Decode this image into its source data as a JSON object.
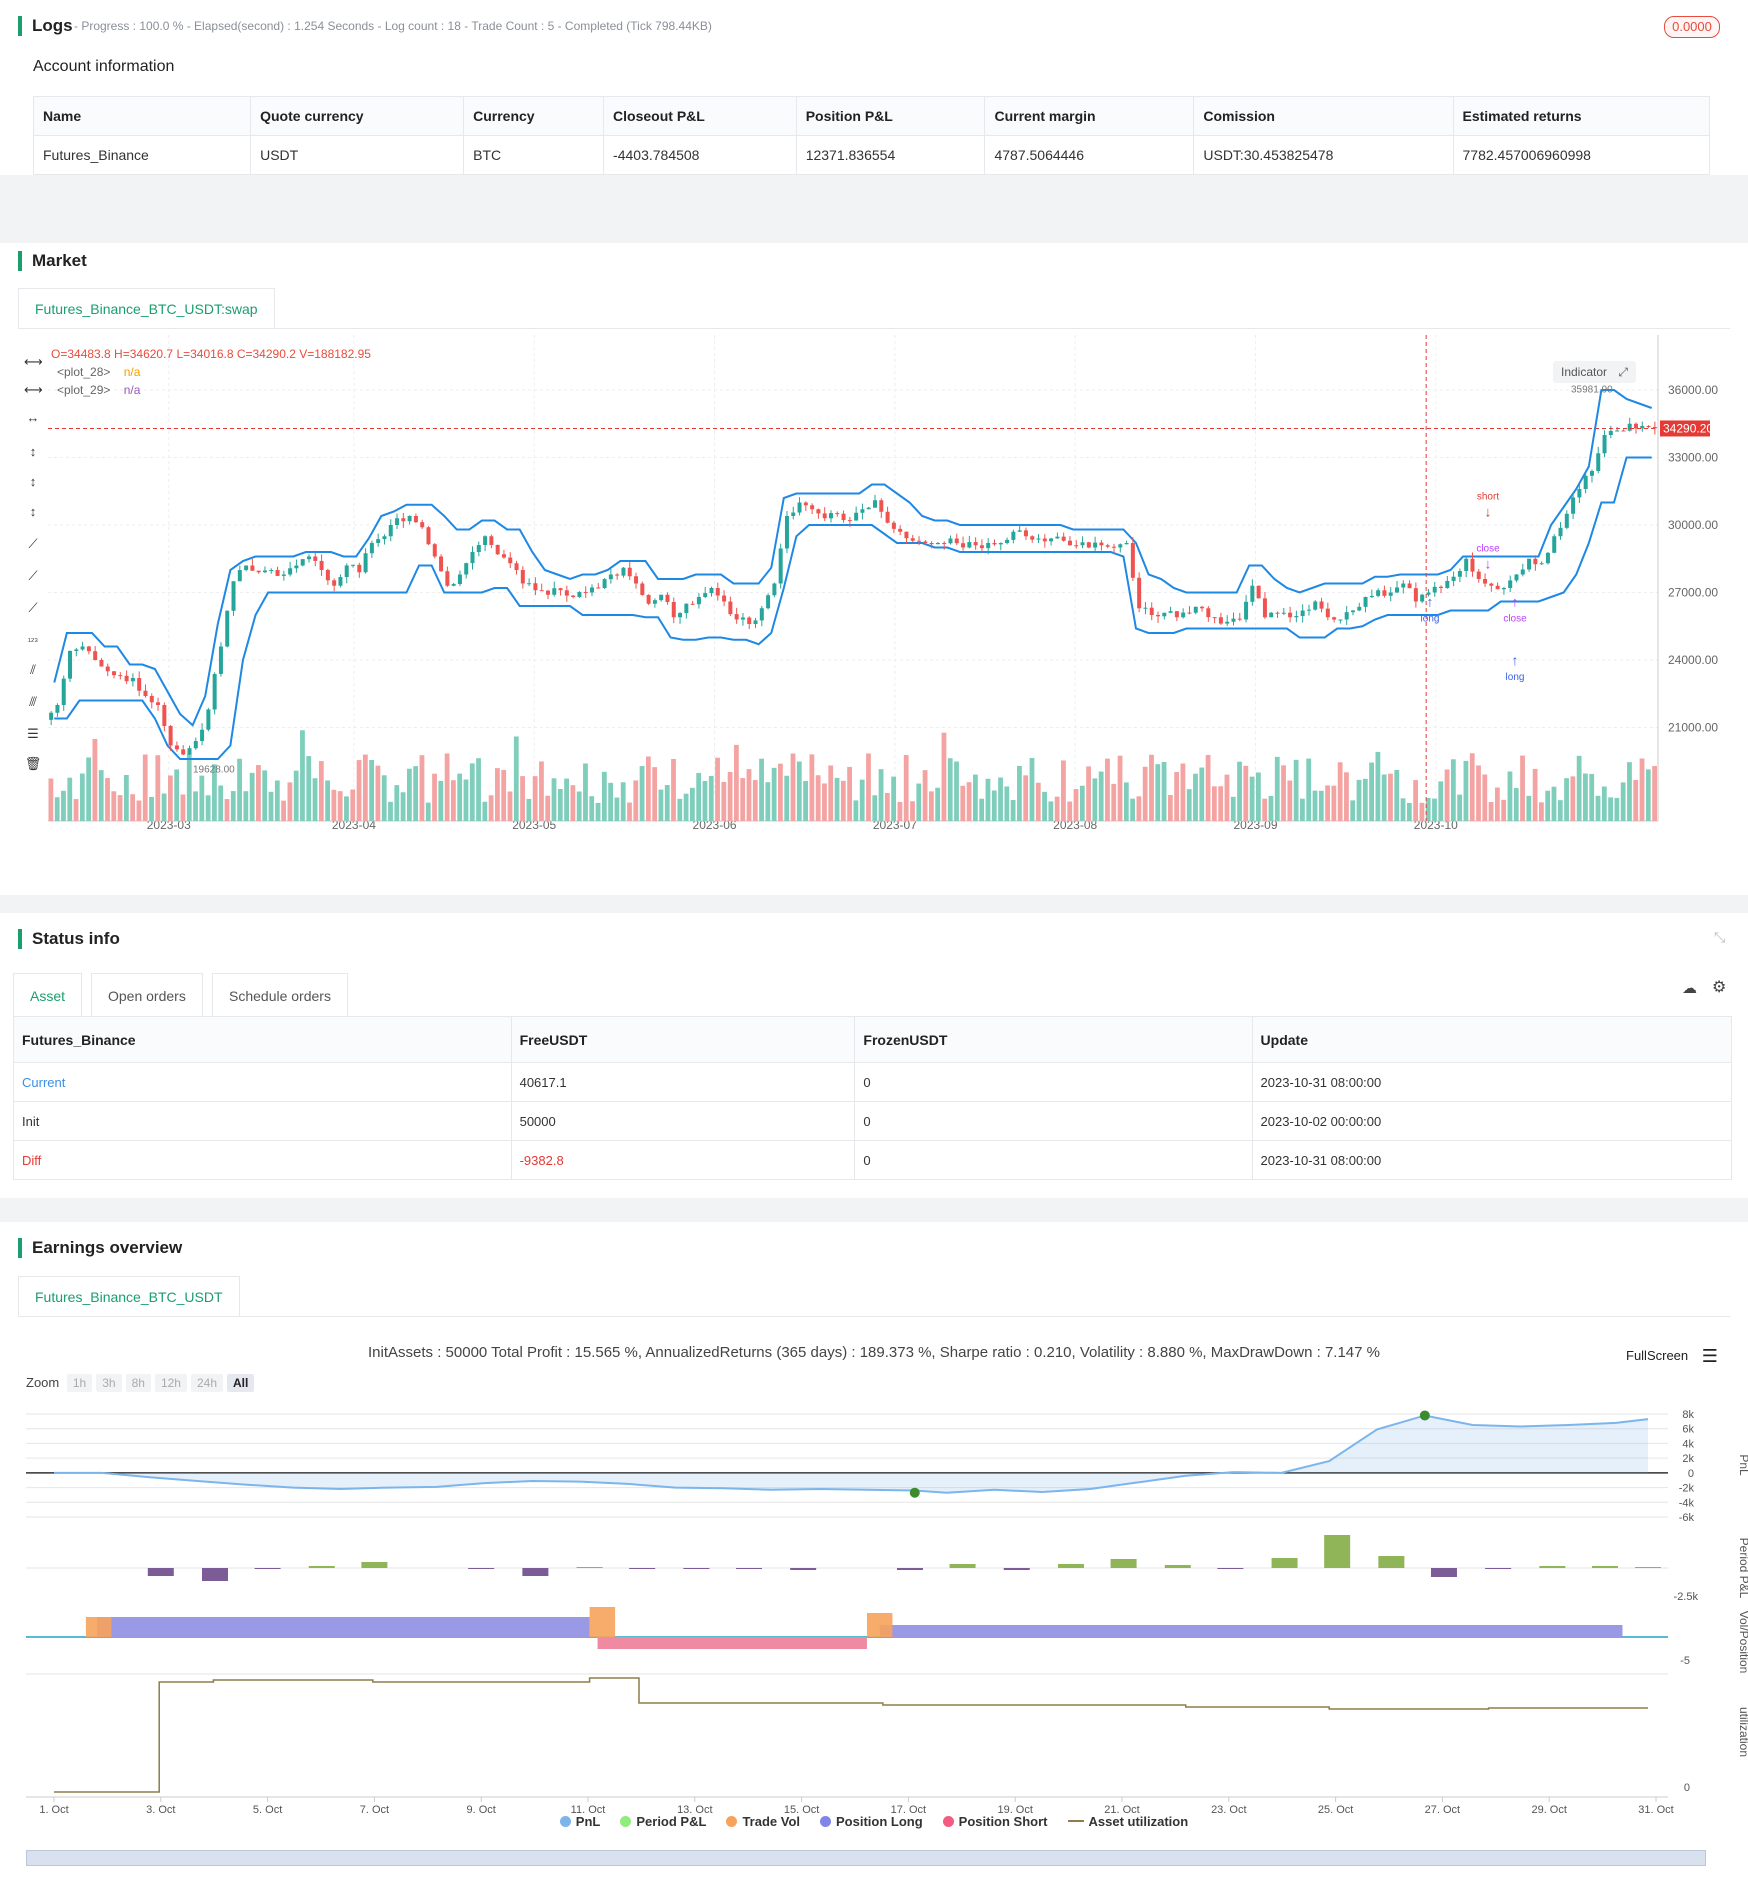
{
  "logs": {
    "title": "Logs",
    "summary": "- Progress : 100.0 % - Elapsed(second) : 1.254  Seconds - Log count : 18 - Trade Count : 5 - Completed (Tick 798.44KB)",
    "badge": "0.0000"
  },
  "account": {
    "title": "Account information",
    "headers": [
      "Name",
      "Quote currency",
      "Currency",
      "Closeout P&L",
      "Position P&L",
      "Current margin",
      "Comission",
      "Estimated returns"
    ],
    "row": [
      "Futures_Binance",
      "USDT",
      "BTC",
      "-4403.784508",
      "12371.836554",
      "4787.5064446",
      "USDT:30.453825478",
      "7782.457006960998"
    ]
  },
  "market": {
    "title": "Market",
    "tab": "Futures_Binance_BTC_USDT:swap",
    "ohlc": "O=34483.8 H=34620.7 L=34016.8 C=34290.2 V=188182.95",
    "legend": [
      {
        "label": "<plot_28>",
        "value": "n/a",
        "color": "#f0a000"
      },
      {
        "label": "<plot_29>",
        "value": "n/a",
        "color": "#9b59b6"
      }
    ],
    "indicator_btn": "Indicator",
    "price_label": "34290.20",
    "high_label": "35981.90",
    "low_label": "19628.00",
    "y_ticks": [
      "36000.00",
      "33000.00",
      "30000.00",
      "27000.00",
      "24000.00",
      "21000.00"
    ],
    "x_ticks": [
      "2023-03",
      "2023-04",
      "2023-05",
      "2023-06",
      "2023-07",
      "2023-08",
      "2023-09",
      "2023-10"
    ],
    "markers": {
      "short": "short",
      "close1": "close",
      "long1": "long",
      "close2": "close",
      "long2": "long"
    }
  },
  "chart_data": {
    "type": "candlestick",
    "x_range": [
      "2023-02-19",
      "2023-10-31"
    ],
    "ylim": [
      18000,
      38000
    ],
    "close": [
      22000,
      24400,
      24600,
      24000,
      23500,
      23300,
      23200,
      22400,
      22000,
      20200,
      19800,
      20400,
      21800,
      24600,
      27500,
      28200,
      27900,
      28000,
      27800,
      28200,
      28600,
      28000,
      27300,
      28200,
      27900,
      29200,
      29500,
      30300,
      30400,
      29900,
      28600,
      27300,
      27800,
      28800,
      29500,
      28700,
      28300,
      27400,
      27100,
      26900,
      27100,
      26800,
      27000,
      27200,
      27800,
      28100,
      27400,
      26500,
      26900,
      25900,
      26500,
      26800,
      27200,
      26600,
      25800,
      25600,
      26300,
      27400,
      30400,
      31000,
      30700,
      30300,
      30500,
      30200,
      30700,
      31100,
      30100,
      29700,
      29300,
      29200,
      29200,
      29400,
      29000,
      29100,
      29200,
      29200,
      29700,
      29500,
      29400,
      29400,
      29300,
      29100,
      29000,
      29100,
      29000,
      29200,
      26300,
      26000,
      26100,
      25900,
      26100,
      26300,
      25900,
      25700,
      25800,
      27300,
      25900,
      26100,
      25900,
      26200,
      26600,
      25900,
      25800,
      26200,
      26800,
      27100,
      27000,
      27400,
      26600,
      27000,
      27200,
      27700,
      28500,
      27600,
      27300,
      27200,
      27800,
      28500,
      28300,
      29500,
      30500,
      31600,
      32400,
      34000,
      34200,
      34500,
      34400,
      34300
    ],
    "upper_band": [
      23000,
      25200,
      25200,
      25200,
      24600,
      24600,
      23800,
      23800,
      23600,
      22600,
      21600,
      21100,
      22400,
      25600,
      28000,
      28400,
      28600,
      28600,
      28600,
      28600,
      28800,
      28800,
      28800,
      28600,
      28600,
      29400,
      30400,
      30600,
      30900,
      30900,
      30900,
      30400,
      29800,
      29800,
      30200,
      30200,
      29800,
      29800,
      28800,
      28000,
      27800,
      27600,
      27800,
      27800,
      28000,
      28400,
      28400,
      28400,
      27600,
      27600,
      27600,
      27800,
      27800,
      27800,
      27400,
      27400,
      27400,
      28100,
      31200,
      31400,
      31400,
      31400,
      31400,
      31400,
      31400,
      31800,
      31800,
      31400,
      31000,
      30400,
      30200,
      30200,
      30000,
      30000,
      30000,
      30000,
      30000,
      30000,
      30000,
      30000,
      30000,
      29800,
      29800,
      29800,
      29800,
      29800,
      29200,
      27800,
      27600,
      27200,
      27000,
      27000,
      27000,
      27000,
      27000,
      28200,
      28200,
      27600,
      27200,
      27000,
      27200,
      27400,
      27400,
      27400,
      27400,
      27700,
      27700,
      27800,
      27800,
      27800,
      27800,
      28000,
      28600,
      28600,
      28600,
      28600,
      28600,
      28600,
      28600,
      30000,
      30800,
      31600,
      32600,
      36000,
      36000,
      35600,
      35400,
      35200
    ],
    "lower_band": [
      21400,
      21400,
      22200,
      22200,
      22200,
      22200,
      22200,
      22200,
      21400,
      20200,
      19600,
      19600,
      19600,
      19600,
      20200,
      24000,
      26000,
      27000,
      27000,
      27000,
      27000,
      27000,
      27000,
      27000,
      27000,
      27000,
      27000,
      27000,
      27000,
      28200,
      28200,
      27000,
      27000,
      27000,
      27000,
      27200,
      27200,
      26400,
      26400,
      26400,
      26400,
      26400,
      26000,
      26000,
      26000,
      26000,
      26000,
      25900,
      25900,
      25000,
      24900,
      24900,
      25000,
      25000,
      24900,
      24900,
      24700,
      25200,
      27200,
      29500,
      30000,
      30000,
      30000,
      30000,
      30000,
      30000,
      29600,
      29200,
      29200,
      29200,
      29000,
      29000,
      28800,
      28800,
      28800,
      28800,
      28800,
      28800,
      28800,
      28800,
      28800,
      28800,
      28800,
      28800,
      28800,
      28600,
      25400,
      25200,
      25200,
      25200,
      25400,
      25400,
      25400,
      25400,
      25400,
      25400,
      25400,
      25400,
      25400,
      25000,
      25000,
      25000,
      25400,
      25400,
      25500,
      25800,
      26000,
      26000,
      26000,
      26000,
      26000,
      26200,
      26200,
      26200,
      26200,
      26600,
      26600,
      26600,
      26600,
      26800,
      27000,
      27800,
      29200,
      31000,
      31000,
      33000,
      33000,
      33000
    ]
  },
  "status": {
    "title": "Status info",
    "tabs": [
      "Asset",
      "Open orders",
      "Schedule orders"
    ],
    "headers": [
      "Futures_Binance",
      "FreeUSDT",
      "FrozenUSDT",
      "Update"
    ],
    "rows": [
      [
        "Current",
        "40617.1",
        "0",
        "2023-10-31 08:00:00"
      ],
      [
        "Init",
        "50000",
        "0",
        "2023-10-02 00:00:00"
      ],
      [
        "Diff",
        "-9382.8",
        "0",
        "2023-10-31 08:00:00"
      ]
    ]
  },
  "earnings": {
    "title": "Earnings overview",
    "tab": "Futures_Binance_BTC_USDT",
    "summary": "InitAssets : 50000 Total Profit : 15.565 %, AnnualizedReturns (365 days) : 189.373 %, Sharpe ratio : 0.210, Volatility : 8.880 %, MaxDrawDown : 7.147 %",
    "fullscreen": "FullScreen",
    "zoom_label": "Zoom",
    "zoom_options": [
      "1h",
      "3h",
      "8h",
      "12h",
      "24h",
      "All"
    ],
    "pnl_ticks": [
      "8k",
      "6k",
      "4k",
      "2k",
      "0",
      "-2k",
      "-4k",
      "-6k"
    ],
    "period_tick": "-2.5k",
    "vol_tick": "-5",
    "util_tick": "0",
    "axis_labels": [
      "PnL",
      "Period P&L",
      "Vol/Position",
      "utilization"
    ],
    "x_ticks": [
      "1. Oct",
      "3. Oct",
      "5. Oct",
      "7. Oct",
      "9. Oct",
      "11. Oct",
      "13. Oct",
      "15. Oct",
      "17. Oct",
      "19. Oct",
      "21. Oct",
      "23. Oct",
      "25. Oct",
      "27. Oct",
      "29. Oct",
      "31. Oct"
    ],
    "legend": [
      {
        "label": "PnL",
        "color": "#7cb5ec"
      },
      {
        "label": "Period P&L",
        "color": "#90ed7d"
      },
      {
        "label": "Trade Vol",
        "color": "#f7a35c"
      },
      {
        "label": "Position Long",
        "color": "#8085e9"
      },
      {
        "label": "Position Short",
        "color": "#f15c80"
      },
      {
        "label": "Asset utilization",
        "color": "#8d7d4a"
      }
    ]
  }
}
